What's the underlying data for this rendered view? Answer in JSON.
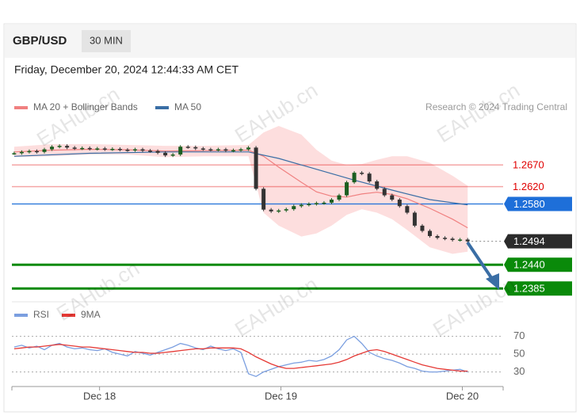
{
  "header": {
    "symbol": "GBP/USD",
    "timeframe": "30 MIN",
    "timestamp": "Friday, December 20, 2024 12:44:33 AM CET",
    "copyright": "Research © 2024 Trading Central",
    "watermark": "EAHub.cn"
  },
  "chart_data": [
    {
      "type": "candlestick",
      "up_color": "#1b5e20",
      "down_color": "#333333",
      "values": [
        1.2697,
        1.27,
        1.2702,
        1.27,
        1.2706,
        1.2712,
        1.2714,
        1.271,
        1.2708,
        1.2709,
        1.2707,
        1.2708,
        1.2706,
        1.2707,
        1.2705,
        1.2704,
        1.2706,
        1.2703,
        1.2702,
        1.2698,
        1.2692,
        1.2694,
        1.2712,
        1.2711,
        1.2708,
        1.2706,
        1.2705,
        1.2706,
        1.2703,
        1.2704,
        1.2706,
        1.271,
        1.2615,
        1.2567,
        1.2563,
        1.2565,
        1.2568,
        1.2575,
        1.2578,
        1.258,
        1.2582,
        1.2583,
        1.259,
        1.26,
        1.263,
        1.2652,
        1.265,
        1.2632,
        1.2615,
        1.26,
        1.259,
        1.2575,
        1.256,
        1.253,
        1.2518,
        1.2506,
        1.2502,
        1.25,
        1.2497,
        1.2498,
        1.2494
      ],
      "series": [
        {
          "name": "MA 20 + Bollinger Bands",
          "color": "#f08080",
          "band_color": "#fdd6d6",
          "x": [
            0,
            5,
            10,
            15,
            20,
            25,
            31,
            33,
            35,
            38,
            40,
            42,
            44,
            46,
            48,
            50,
            52,
            55,
            58,
            60
          ],
          "values": [
            1.27,
            1.2704,
            1.2706,
            1.2705,
            1.2702,
            1.2703,
            1.2704,
            1.269,
            1.2665,
            1.263,
            1.2608,
            1.2598,
            1.2596,
            1.2603,
            1.2607,
            1.2602,
            1.2592,
            1.257,
            1.2545,
            1.2525
          ],
          "upper": [
            1.2712,
            1.2718,
            1.2718,
            1.2716,
            1.2714,
            1.2714,
            1.2716,
            1.2745,
            1.276,
            1.274,
            1.2705,
            1.268,
            1.267,
            1.2672,
            1.2682,
            1.269,
            1.269,
            1.2675,
            1.2645,
            1.2622
          ],
          "lower": [
            1.2688,
            1.269,
            1.2694,
            1.2694,
            1.2688,
            1.269,
            1.269,
            1.256,
            1.253,
            1.2505,
            1.2512,
            1.253,
            1.2555,
            1.2568,
            1.256,
            1.2545,
            1.252,
            1.248,
            1.2465,
            1.247
          ]
        },
        {
          "name": "MA 50",
          "color": "#3a6ea5",
          "x": [
            0,
            10,
            20,
            31,
            35,
            40,
            45,
            50,
            55,
            60
          ],
          "values": [
            1.269,
            1.2697,
            1.27,
            1.27,
            1.2685,
            1.266,
            1.2635,
            1.2612,
            1.259,
            1.2578
          ]
        }
      ],
      "levels": [
        {
          "value": 1.267,
          "label": "1.2670",
          "color": "#e00000",
          "marker": "text",
          "line": "faint"
        },
        {
          "value": 1.262,
          "label": "1.2620",
          "color": "#e00000",
          "marker": "text",
          "line": "faint"
        },
        {
          "value": 1.258,
          "label": "1.2580",
          "color": "#1e6fd9",
          "marker": "box",
          "line": "solid"
        },
        {
          "value": 1.2494,
          "label": "1.2494",
          "color": "#2b2b2b",
          "marker": "box",
          "line": "dotted"
        },
        {
          "value": 1.244,
          "label": "1.2440",
          "color": "#0a8a0a",
          "marker": "box",
          "line": "thick"
        },
        {
          "value": 1.2385,
          "label": "1.2385",
          "color": "#0a8a0a",
          "marker": "box",
          "line": "thick"
        }
      ],
      "xlim": [
        -0.3,
        64.7
      ],
      "ylim": [
        1.236,
        1.278
      ]
    },
    {
      "type": "line",
      "series": [
        {
          "name": "RSI",
          "color": "#7b9fe0",
          "values": [
            58,
            60,
            57,
            59,
            55,
            60,
            62,
            58,
            56,
            57,
            55,
            54,
            56,
            52,
            50,
            48,
            53,
            51,
            49,
            52,
            55,
            58,
            62,
            60,
            57,
            55,
            59,
            56,
            54,
            56,
            52,
            28,
            25,
            30,
            33,
            36,
            38,
            40,
            41,
            43,
            42,
            44,
            48,
            55,
            66,
            70,
            62,
            52,
            48,
            45,
            43,
            40,
            36,
            34,
            31,
            30,
            30,
            31,
            32,
            33,
            30
          ]
        },
        {
          "name": "9MA",
          "color": "#e53935",
          "values": [
            56,
            57,
            58,
            58,
            59,
            60,
            61,
            60,
            59,
            58,
            58,
            57,
            56,
            55,
            54,
            53,
            52,
            52,
            51,
            51,
            52,
            53,
            54,
            55,
            56,
            56,
            57,
            57,
            57,
            57,
            56,
            52,
            47,
            43,
            39,
            36,
            34,
            34,
            35,
            36,
            37,
            38,
            39,
            41,
            44,
            48,
            51,
            54,
            55,
            53,
            50,
            47,
            44,
            41,
            38,
            36,
            34,
            33,
            32,
            31,
            31
          ]
        }
      ],
      "xlim": [
        -0.3,
        64.7
      ],
      "xticks": [
        {
          "value": 11.3,
          "label": "Dec 18"
        },
        {
          "value": 35.3,
          "label": "Dec 19"
        },
        {
          "value": 59.3,
          "label": "Dec 20"
        }
      ],
      "ylim": [
        19,
        83
      ],
      "yticks": [
        30,
        50,
        70
      ],
      "grid": true
    }
  ]
}
